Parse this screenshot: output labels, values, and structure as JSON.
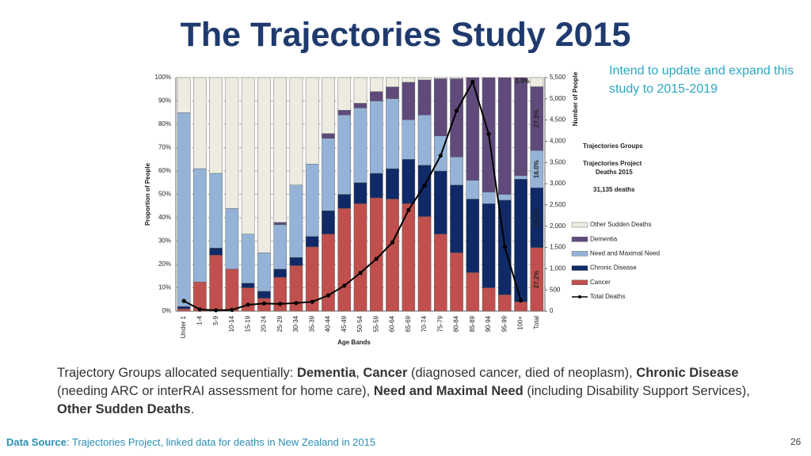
{
  "slide": {
    "title": "The Trajectories Study 2015",
    "note": "Intend to update and expand this study to 2015-2019",
    "paragraph": [
      {
        "text": "Trajectory Groups allocated sequentially: ",
        "bold": false
      },
      {
        "text": "Dementia",
        "bold": true
      },
      {
        "text": ", ",
        "bold": false
      },
      {
        "text": "Cancer",
        "bold": true
      },
      {
        "text": " (diagnosed cancer, died of neoplasm), ",
        "bold": false
      },
      {
        "text": "Chronic Disease",
        "bold": true
      },
      {
        "text": " (needing ARC or interRAI assessment for home care), ",
        "bold": false
      },
      {
        "text": "Need and Maximal Need",
        "bold": true
      },
      {
        "text": " (including Disability Support Services), ",
        "bold": false
      },
      {
        "text": "Other Sudden Deaths",
        "bold": true
      },
      {
        "text": ".",
        "bold": false
      }
    ],
    "footer": [
      {
        "text": "Data Source",
        "bold": true
      },
      {
        "text": ": Trajectories Project, linked data for deaths in New Zealand in 2015",
        "bold": false
      }
    ],
    "page_number": "26"
  },
  "chart_data": {
    "type": "bar",
    "stacked": true,
    "x_label": "Age Bands",
    "y_label": "Proportion of People",
    "y2_label": "Number of People",
    "legend_title": "Trajectories Groups",
    "annotation": [
      "Trajectories Project",
      "Deaths 2015",
      "31,135 deaths"
    ],
    "categories": [
      "Under 1",
      "1-4",
      "5-9",
      "10-14",
      "15-19",
      "20-24",
      "25-29",
      "30-34",
      "35-39",
      "40-44",
      "45-49",
      "50-54",
      "55-59",
      "60-64",
      "65-69",
      "70-74",
      "75-79",
      "80-84",
      "85-89",
      "90-94",
      "95-99",
      "100+",
      "Total"
    ],
    "series": [
      {
        "name": "Cancer",
        "color": "#c0504d",
        "values": [
          1,
          12.5,
          24,
          18,
          10,
          5.5,
          14.5,
          19.5,
          27.5,
          33,
          44,
          46,
          48.5,
          48,
          46,
          40.5,
          33,
          25,
          16.5,
          10,
          7,
          4,
          27.2
        ],
        "value_labels": [
          null,
          null,
          null,
          null,
          null,
          null,
          null,
          null,
          null,
          null,
          null,
          null,
          null,
          null,
          null,
          null,
          null,
          null,
          null,
          null,
          null,
          null,
          "27.2%"
        ]
      },
      {
        "name": "Chronic Disease",
        "color": "#0f2a66",
        "values": [
          1,
          0,
          3,
          0,
          2,
          3,
          3.5,
          3.5,
          4.5,
          10,
          6,
          9,
          10.5,
          13,
          19,
          22,
          27,
          29,
          31.5,
          36,
          40.5,
          52.5,
          25.6
        ],
        "value_labels": [
          null,
          null,
          null,
          null,
          null,
          null,
          null,
          null,
          null,
          null,
          null,
          null,
          null,
          null,
          null,
          null,
          null,
          null,
          null,
          null,
          null,
          null,
          "25.6%"
        ]
      },
      {
        "name": "Need and Maximal Need",
        "color": "#95b3d7",
        "values": [
          83,
          48.5,
          32,
          26,
          21,
          16.5,
          19,
          31,
          31,
          31,
          34,
          32,
          31,
          30,
          17,
          21.5,
          15,
          12,
          8,
          5,
          2.5,
          1.5,
          16.0
        ],
        "value_labels": [
          null,
          null,
          null,
          null,
          null,
          null,
          null,
          null,
          null,
          null,
          null,
          null,
          null,
          null,
          null,
          null,
          null,
          null,
          null,
          null,
          null,
          null,
          "16.0%"
        ]
      },
      {
        "name": "Dementia",
        "color": "#604a7b",
        "values": [
          0,
          0,
          0,
          0,
          0,
          0,
          1,
          0,
          0,
          2,
          2,
          2,
          4,
          5,
          16,
          15,
          24.5,
          33.5,
          44,
          49,
          50,
          42,
          27.3
        ],
        "value_labels": [
          null,
          null,
          null,
          null,
          null,
          null,
          null,
          null,
          null,
          null,
          null,
          null,
          null,
          null,
          null,
          null,
          null,
          null,
          null,
          null,
          null,
          null,
          "27.3%"
        ]
      },
      {
        "name": "Other Sudden Deaths",
        "color": "#eeece1",
        "values": [
          15,
          39,
          41,
          56,
          67,
          75,
          62,
          46,
          37,
          24,
          14,
          11,
          6,
          4,
          2,
          1,
          0.5,
          0.5,
          0,
          0,
          0,
          0,
          3.9
        ],
        "value_labels": [
          null,
          null,
          null,
          null,
          null,
          null,
          null,
          null,
          null,
          null,
          null,
          null,
          null,
          null,
          null,
          null,
          null,
          null,
          null,
          null,
          null,
          null,
          "3.9%"
        ]
      },
      {
        "name": "Total Deaths",
        "color": "#000000",
        "axis": "y2",
        "values": [
          240,
          40,
          20,
          30,
          150,
          180,
          170,
          190,
          220,
          370,
          600,
          900,
          1230,
          1620,
          2380,
          2960,
          3660,
          4720,
          5400,
          4170,
          1510,
          250,
          null
        ]
      }
    ],
    "ylim": [
      0,
      100
    ],
    "yticks": [
      {
        "value": 0,
        "label": "0%"
      },
      {
        "value": 10,
        "label": "10%"
      },
      {
        "value": 20,
        "label": "20%"
      },
      {
        "value": 30,
        "label": "30%"
      },
      {
        "value": 40,
        "label": "40%"
      },
      {
        "value": 50,
        "label": "50%"
      },
      {
        "value": 60,
        "label": "60%"
      },
      {
        "value": 70,
        "label": "70%"
      },
      {
        "value": 80,
        "label": "80%"
      },
      {
        "value": 90,
        "label": "90%"
      },
      {
        "value": 100,
        "label": "100%"
      }
    ],
    "y2lim": [
      0,
      5500
    ],
    "y2ticks": [
      0,
      500,
      {
        "value": 1000,
        "label": "1,000"
      },
      {
        "value": 1500,
        "label": "1,500"
      },
      {
        "value": 2000,
        "label": "2,000"
      },
      {
        "value": 2500,
        "label": "2,500"
      },
      {
        "value": 3000,
        "label": "3,000"
      },
      {
        "value": 3500,
        "label": "3,500"
      },
      {
        "value": 4000,
        "label": "4,000"
      },
      {
        "value": 4500,
        "label": "4,500"
      },
      {
        "value": 5000,
        "label": "5,000"
      },
      {
        "value": 5500,
        "label": "5,500"
      }
    ],
    "grid": true
  }
}
